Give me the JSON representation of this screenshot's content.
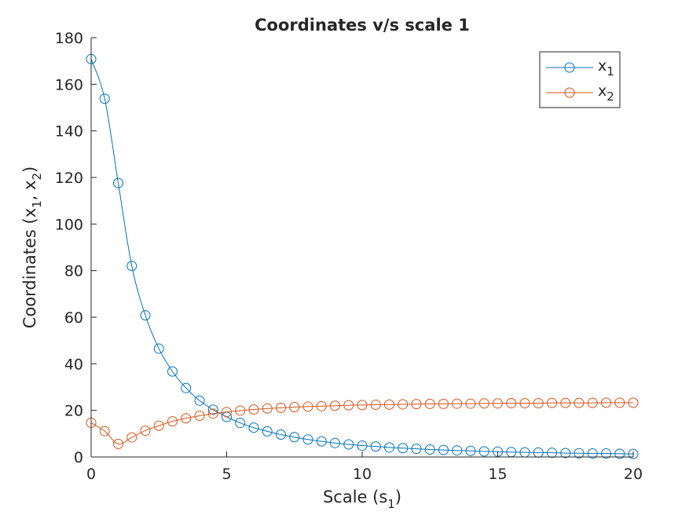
{
  "chart_data": {
    "type": "line",
    "title": "Coordinates v/s scale 1",
    "xlabel": {
      "text": "Scale (s",
      "sub": "1",
      "after": ")"
    },
    "ylabel": {
      "parts": [
        "Coordinates (x",
        ", x",
        ")"
      ],
      "subs": [
        "1",
        "2"
      ]
    },
    "xlim": [
      0,
      20
    ],
    "ylim": [
      0,
      180
    ],
    "xticks": [
      0,
      5,
      10,
      15,
      20
    ],
    "yticks": [
      0,
      20,
      40,
      60,
      80,
      100,
      120,
      140,
      160,
      180
    ],
    "grid": false,
    "legend_position": "top-right",
    "x": [
      0,
      0.5,
      1,
      1.5,
      2,
      2.5,
      3,
      3.5,
      4,
      4.5,
      5,
      5.5,
      6,
      6.5,
      7,
      7.5,
      8,
      8.5,
      9,
      9.5,
      10,
      10.5,
      11,
      11.5,
      12,
      12.5,
      13,
      13.5,
      14,
      14.5,
      15,
      15.5,
      16,
      16.5,
      17,
      17.5,
      18,
      18.5,
      19,
      19.5,
      20
    ],
    "series": [
      {
        "name": "x",
        "name_sub": "1",
        "color": "#0072BD",
        "values": [
          170.8,
          153.8,
          117.6,
          82.0,
          60.8,
          46.5,
          36.7,
          29.6,
          24.2,
          20.3,
          17.2,
          14.6,
          12.6,
          11.0,
          9.6,
          8.5,
          7.5,
          6.7,
          6.0,
          5.4,
          4.9,
          4.5,
          4.1,
          3.8,
          3.5,
          3.2,
          3.0,
          2.8,
          2.6,
          2.4,
          2.3,
          2.1,
          2.0,
          1.9,
          1.8,
          1.7,
          1.6,
          1.5,
          1.5,
          1.4,
          1.3
        ]
      },
      {
        "name": "x",
        "name_sub": "2",
        "color": "#D95319",
        "values": [
          14.7,
          11.1,
          5.6,
          8.4,
          11.3,
          13.4,
          15.3,
          16.6,
          17.7,
          18.6,
          19.3,
          19.9,
          20.4,
          20.8,
          21.1,
          21.4,
          21.6,
          21.8,
          22.0,
          22.2,
          22.3,
          22.4,
          22.5,
          22.6,
          22.7,
          22.8,
          22.8,
          22.9,
          22.9,
          23.0,
          23.0,
          23.1,
          23.1,
          23.1,
          23.2,
          23.2,
          23.2,
          23.2,
          23.3,
          23.3,
          23.3
        ]
      }
    ]
  }
}
